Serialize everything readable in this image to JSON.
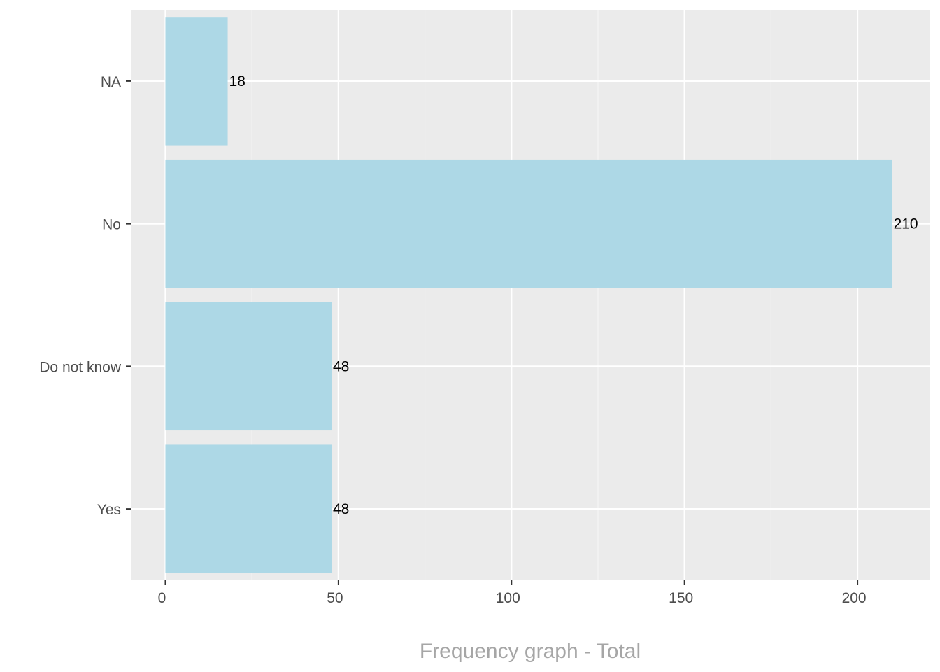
{
  "chart_data": {
    "type": "bar",
    "orientation": "horizontal",
    "categories": [
      "NA",
      "No",
      "Do not know",
      "Yes"
    ],
    "values": [
      18,
      210,
      48,
      48
    ],
    "data_labels": [
      "18",
      "210",
      "48",
      "48"
    ],
    "title": "",
    "xlabel": "Frequency graph - Total",
    "ylabel": "",
    "xlim": [
      -10,
      221
    ],
    "x_ticks": [
      0,
      50,
      100,
      150,
      200
    ],
    "x_tick_labels": [
      "0",
      "50",
      "100",
      "150",
      "200"
    ],
    "grid": true,
    "legend": "none",
    "colors": {
      "bar": "#add8e6",
      "panel": "#ebebeb",
      "grid_major": "#ffffff",
      "grid_minor": "#f5f5f5",
      "axis_text": "#4d4d4d",
      "axis_title": "#a6a6a6"
    }
  }
}
